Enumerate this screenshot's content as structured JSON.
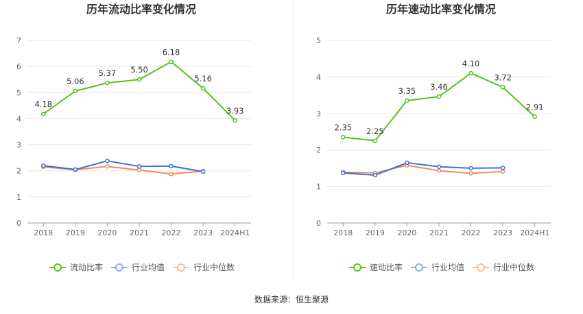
{
  "source_label": "数据来源：恒生聚源",
  "chart_data": [
    {
      "type": "line",
      "title": "历年流动比率变化情况",
      "categories": [
        "2018",
        "2019",
        "2020",
        "2021",
        "2022",
        "2023",
        "2024H1"
      ],
      "ylim": [
        0,
        7
      ],
      "yticks": [
        0,
        1,
        2,
        3,
        4,
        5,
        6,
        7
      ],
      "grid": true,
      "legend_position": "bottom",
      "series": [
        {
          "name": "流动比率",
          "color": "#52c41a",
          "values": [
            4.18,
            5.06,
            5.37,
            5.5,
            6.18,
            5.16,
            3.93
          ],
          "labels": [
            "4.18",
            "5.06",
            "5.37",
            "5.50",
            "6.18",
            "5.16",
            "3.93"
          ]
        },
        {
          "name": "行业均值",
          "color": "#3b6fd8",
          "values": [
            2.2,
            2.05,
            2.38,
            2.17,
            2.18,
            1.97,
            null
          ]
        },
        {
          "name": "行业中位数",
          "color": "#f08a5d",
          "values": [
            2.15,
            2.04,
            2.17,
            2.03,
            1.88,
            1.99,
            null
          ]
        }
      ]
    },
    {
      "type": "line",
      "title": "历年速动比率变化情况",
      "categories": [
        "2018",
        "2019",
        "2020",
        "2021",
        "2022",
        "2023",
        "2024H1"
      ],
      "ylim": [
        0,
        5
      ],
      "yticks": [
        0,
        1,
        2,
        3,
        4,
        5
      ],
      "grid": true,
      "legend_position": "bottom",
      "series": [
        {
          "name": "速动比率",
          "color": "#52c41a",
          "values": [
            2.35,
            2.25,
            3.35,
            3.46,
            4.1,
            3.72,
            2.91
          ],
          "labels": [
            "2.35",
            "2.25",
            "3.35",
            "3.46",
            "4.10",
            "3.72",
            "2.91"
          ]
        },
        {
          "name": "行业均值",
          "color": "#3b6fd8",
          "values": [
            1.37,
            1.31,
            1.65,
            1.54,
            1.5,
            1.51,
            null
          ]
        },
        {
          "name": "行业中位数",
          "color": "#f08a5d",
          "values": [
            1.39,
            1.37,
            1.58,
            1.43,
            1.36,
            1.41,
            null
          ]
        }
      ]
    }
  ]
}
